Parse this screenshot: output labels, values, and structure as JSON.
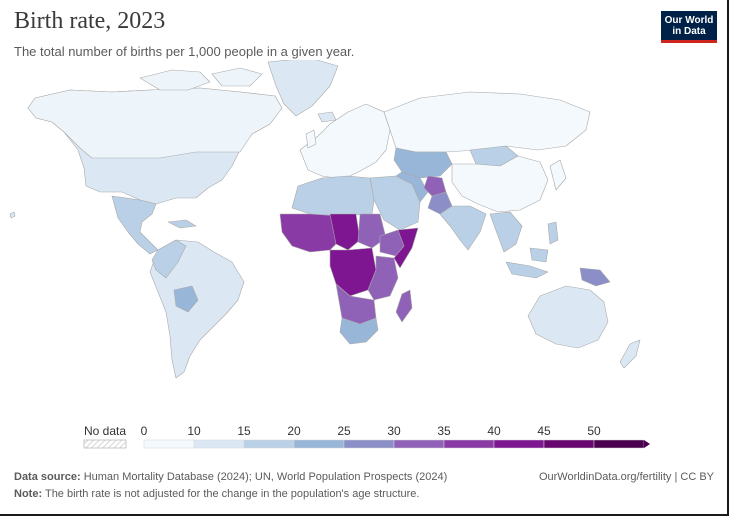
{
  "title": "Birth rate, 2023",
  "subtitle": "The total number of births per 1,000 people in a given year.",
  "logo": {
    "line1": "Our World",
    "line2": "in Data"
  },
  "legend": {
    "no_data_label": "No data",
    "ticks": [
      "0",
      "10",
      "15",
      "20",
      "25",
      "30",
      "35",
      "40",
      "45",
      "50"
    ],
    "colors": [
      "#f3f9fc",
      "#dbe8f3",
      "#b9d0e6",
      "#98b6d7",
      "#8c8ec8",
      "#8f62b8",
      "#8a3aa5",
      "#7d1690",
      "#66066e",
      "#4a004f"
    ]
  },
  "footer": {
    "source_label": "Data source:",
    "source_text": "Human Mortality Database (2024); UN, World Population Prospects (2024)",
    "note_label": "Note:",
    "note_text": "The birth rate is not adjusted for the change in the population's age structure.",
    "link": "OurWorldinData.org/fertility",
    "license": "CC BY"
  },
  "map_data": {
    "metric": "Birth rate (births per 1,000 people)",
    "year": 2023,
    "regions": [
      {
        "name": "North America",
        "bin": "10-15"
      },
      {
        "name": "Greenland",
        "bin": "10-15"
      },
      {
        "name": "Central America",
        "bin": "15-20"
      },
      {
        "name": "South America",
        "bin": "10-15"
      },
      {
        "name": "Bolivia",
        "bin": "20-25"
      },
      {
        "name": "Europe",
        "bin": "0-10"
      },
      {
        "name": "Russia",
        "bin": "0-10"
      },
      {
        "name": "Central Asia",
        "bin": "15-20"
      },
      {
        "name": "Afghanistan",
        "bin": "30-35"
      },
      {
        "name": "Pakistan",
        "bin": "25-30"
      },
      {
        "name": "India",
        "bin": "15-20"
      },
      {
        "name": "China",
        "bin": "0-10"
      },
      {
        "name": "Southeast Asia",
        "bin": "15-20"
      },
      {
        "name": "North Africa",
        "bin": "15-20"
      },
      {
        "name": "Sahel",
        "bin": "35-40"
      },
      {
        "name": "Niger & Chad",
        "bin": "40-45"
      },
      {
        "name": "Central Africa",
        "bin": "40-45"
      },
      {
        "name": "East Africa",
        "bin": "30-35"
      },
      {
        "name": "Somalia",
        "bin": "40-45"
      },
      {
        "name": "Southern Africa",
        "bin": "20-25"
      },
      {
        "name": "Madagascar",
        "bin": "30-35"
      },
      {
        "name": "Arabian Peninsula",
        "bin": "15-20"
      },
      {
        "name": "Australia",
        "bin": "10-15"
      },
      {
        "name": "Papua New Guinea",
        "bin": "25-30"
      }
    ]
  }
}
